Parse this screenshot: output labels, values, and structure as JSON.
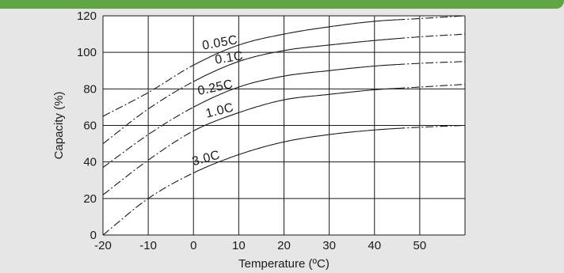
{
  "colors": {
    "topbar": "#5fa544",
    "panel": "#e6e6e6",
    "plot_bg": "#ffffff",
    "ink": "#1a1a1a"
  },
  "chart_data": {
    "type": "line",
    "xlabel": "Temperature (ºC)",
    "ylabel": "Capacity (%)",
    "xlim": [
      -20,
      60
    ],
    "ylim": [
      0,
      120
    ],
    "x_ticks": [
      -20,
      -10,
      0,
      10,
      20,
      30,
      40,
      50
    ],
    "y_ticks": [
      0,
      20,
      40,
      60,
      80,
      100,
      120
    ],
    "x_tick_labels": [
      "-20",
      "-10",
      "0",
      "10",
      "20",
      "30",
      "40",
      "50"
    ],
    "y_tick_labels": [
      "0",
      "20",
      "40",
      "60",
      "80",
      "100",
      "120"
    ],
    "grid": true,
    "line_style": "solid for 0 to about 45 ºC, dash-dot extrapolation at both ends",
    "series": [
      {
        "name": "0.05C",
        "x": [
          -20,
          -10,
          0,
          10,
          20,
          30,
          40,
          50,
          60
        ],
        "y": [
          65,
          78,
          93,
          104,
          110,
          114,
          117,
          118.5,
          120
        ]
      },
      {
        "name": "0.1C",
        "x": [
          -20,
          -10,
          0,
          10,
          20,
          30,
          40,
          50,
          60
        ],
        "y": [
          50,
          69,
          84,
          95,
          101,
          104,
          106.5,
          108.5,
          110
        ]
      },
      {
        "name": "0.25C",
        "x": [
          -20,
          -10,
          0,
          10,
          20,
          30,
          40,
          50,
          60
        ],
        "y": [
          37,
          55,
          70,
          81,
          87,
          90,
          92.5,
          94,
          95
        ]
      },
      {
        "name": "1.0C",
        "x": [
          -20,
          -10,
          0,
          10,
          20,
          30,
          40,
          50,
          60
        ],
        "y": [
          22,
          41,
          57,
          67,
          74,
          77,
          79.5,
          81,
          82.5
        ]
      },
      {
        "name": "3.0C",
        "x": [
          -20,
          -10,
          0,
          10,
          20,
          30,
          40,
          50,
          60
        ],
        "y": [
          0,
          20,
          34,
          44,
          51,
          55,
          57.5,
          59,
          60
        ]
      }
    ]
  }
}
